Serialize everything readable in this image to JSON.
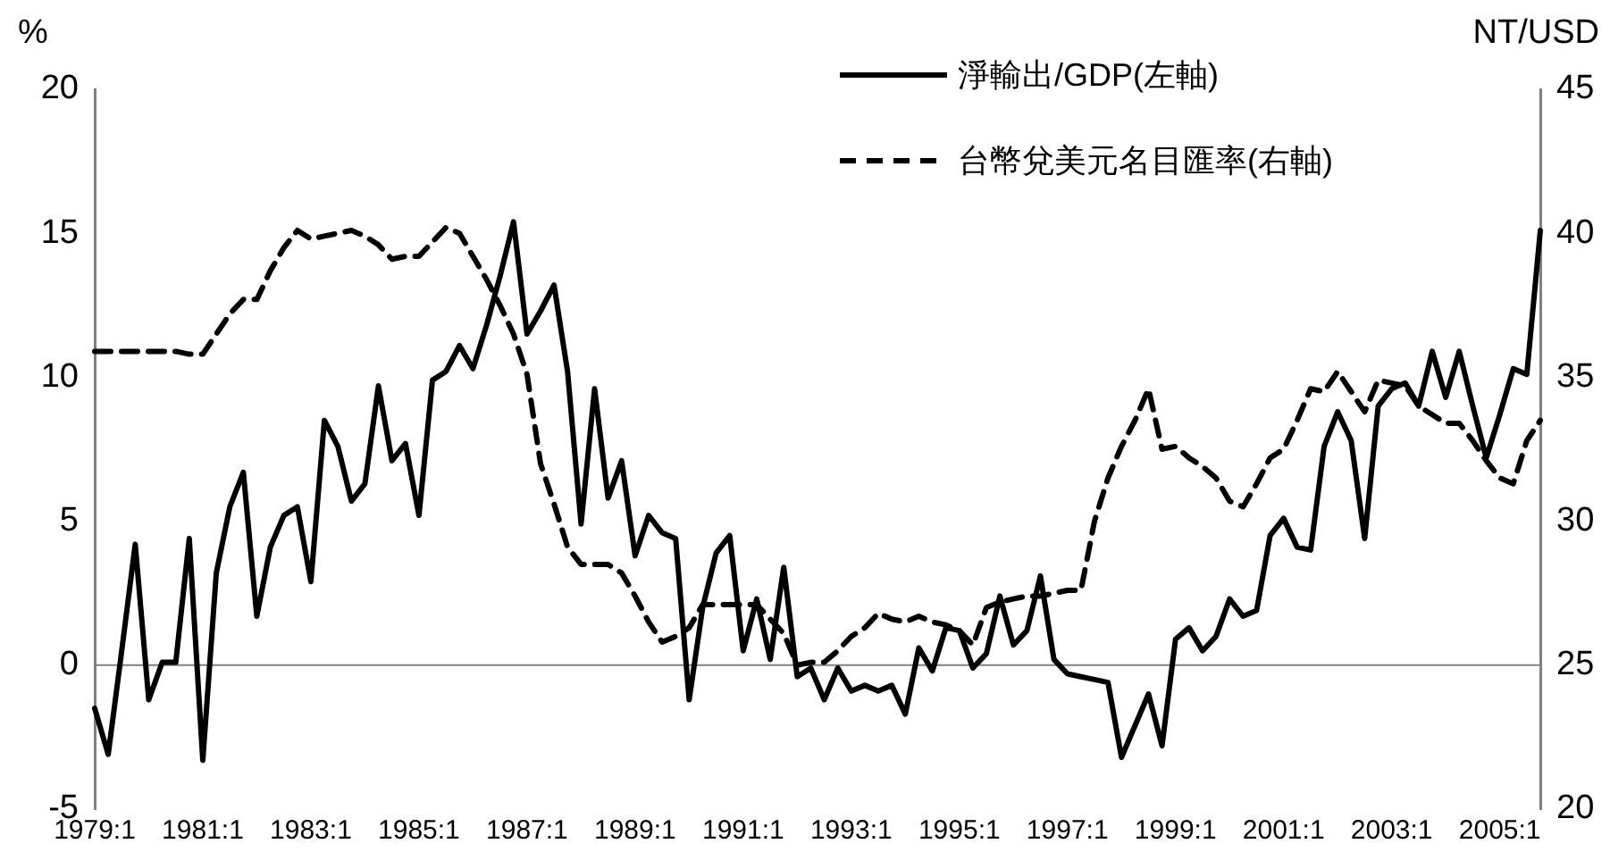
{
  "chart_data": {
    "type": "line",
    "ylabel": "%",
    "y2label": "NT/USD",
    "categories": [
      "1979:1",
      null,
      null,
      null,
      null,
      null,
      null,
      null,
      "1981:1",
      null,
      null,
      null,
      null,
      null,
      null,
      null,
      "1983:1",
      null,
      null,
      null,
      null,
      null,
      null,
      null,
      "1985:1",
      null,
      null,
      null,
      null,
      null,
      null,
      null,
      "1987:1",
      null,
      null,
      null,
      null,
      null,
      null,
      null,
      "1989:1",
      null,
      null,
      null,
      null,
      null,
      null,
      null,
      "1991:1",
      null,
      null,
      null,
      null,
      null,
      null,
      null,
      "1993:1",
      null,
      null,
      null,
      null,
      null,
      null,
      null,
      "1995:1",
      null,
      null,
      null,
      null,
      null,
      null,
      null,
      "1997:1",
      null,
      null,
      null,
      null,
      null,
      null,
      null,
      "1999:1",
      null,
      null,
      null,
      null,
      null,
      null,
      null,
      "2001:1",
      null,
      null,
      null,
      null,
      null,
      null,
      null,
      "2003:1",
      null,
      null,
      null,
      null,
      null,
      null,
      null,
      "2005:1",
      null,
      null,
      null
    ],
    "series": [
      {
        "name": "淨輸出/GDP(左軸)",
        "color": "#000000",
        "line_style": "solid",
        "values": [
          -1.5,
          -3.1,
          0.5,
          4.2,
          -1.2,
          0.1,
          0.1,
          4.4,
          -3.3,
          3.2,
          5.5,
          6.7,
          1.7,
          4.1,
          5.2,
          5.5,
          2.9,
          8.5,
          7.6,
          5.7,
          6.3,
          9.7,
          7.1,
          7.7,
          5.2,
          9.9,
          10.2,
          11.1,
          10.3,
          11.8,
          13.5,
          15.4,
          11.5,
          12.3,
          13.2,
          10.2,
          4.9,
          9.6,
          5.8,
          7.1,
          3.8,
          5.2,
          4.6,
          4.4,
          -1.2,
          2.0,
          3.9,
          4.5,
          0.5,
          2.3,
          0.2,
          3.4,
          -0.4,
          -0.1,
          -1.2,
          -0.1,
          -0.9,
          -0.7,
          -0.9,
          -0.7,
          -1.7,
          0.6,
          -0.2,
          1.3,
          1.2,
          -0.1,
          0.4,
          2.4,
          0.7,
          1.2,
          3.1,
          0.2,
          -0.3,
          -0.4,
          -0.5,
          -0.6,
          -3.2,
          -2.1,
          -1.0,
          -2.8,
          0.9,
          1.3,
          0.5,
          1.0,
          2.3,
          1.7,
          1.9,
          4.5,
          5.1,
          4.1,
          4.0,
          7.6,
          8.8,
          7.8,
          4.4,
          9.0,
          9.6,
          9.8,
          9.0,
          10.9,
          9.3,
          10.9,
          9.0,
          7.2,
          8.7,
          10.3,
          10.1,
          15.1
        ]
      },
      {
        "name": "台幣兌美元名目匯率(右軸)",
        "color": "#000000",
        "line_style": "dashed",
        "axis": "y2",
        "values": [
          35.9,
          35.9,
          35.9,
          35.9,
          35.9,
          35.9,
          35.9,
          35.8,
          35.8,
          36.5,
          37.2,
          37.7,
          37.7,
          38.7,
          39.5,
          40.1,
          39.8,
          39.9,
          40.0,
          40.1,
          39.9,
          39.6,
          39.1,
          39.2,
          39.2,
          39.7,
          40.2,
          40.0,
          39.2,
          38.4,
          37.5,
          36.5,
          35.1,
          32.0,
          30.6,
          29.1,
          28.5,
          28.5,
          28.5,
          28.2,
          27.4,
          26.5,
          25.8,
          26.0,
          26.3,
          27.1,
          27.1,
          27.1,
          27.1,
          27.1,
          26.6,
          26.1,
          25.0,
          25.1,
          25.1,
          25.5,
          26.0,
          26.3,
          26.8,
          26.6,
          26.5,
          26.7,
          26.5,
          26.4,
          26.2,
          25.7,
          27.0,
          27.2,
          27.3,
          27.4,
          27.4,
          27.5,
          27.6,
          27.6,
          30.0,
          31.5,
          32.6,
          33.5,
          34.6,
          32.5,
          32.6,
          32.2,
          31.9,
          31.5,
          30.7,
          30.5,
          31.3,
          32.2,
          32.5,
          33.5,
          34.6,
          34.5,
          35.2,
          34.5,
          33.8,
          34.9,
          34.8,
          34.7,
          34.0,
          33.7,
          33.4,
          33.4,
          32.8,
          32.1,
          31.5,
          31.3,
          32.8,
          33.5
        ]
      }
    ],
    "ylim": [
      -5,
      20
    ],
    "yticks": [
      -5,
      0,
      5,
      10,
      15,
      20
    ],
    "y2lim": [
      20,
      45
    ],
    "y2ticks": [
      20,
      25,
      30,
      35,
      40,
      45
    ],
    "ref_lines": [
      {
        "axis": "y",
        "value": 0,
        "color": "#808080",
        "line_style": "solid"
      }
    ],
    "grid": false,
    "legend": "top right",
    "marker": "none"
  }
}
